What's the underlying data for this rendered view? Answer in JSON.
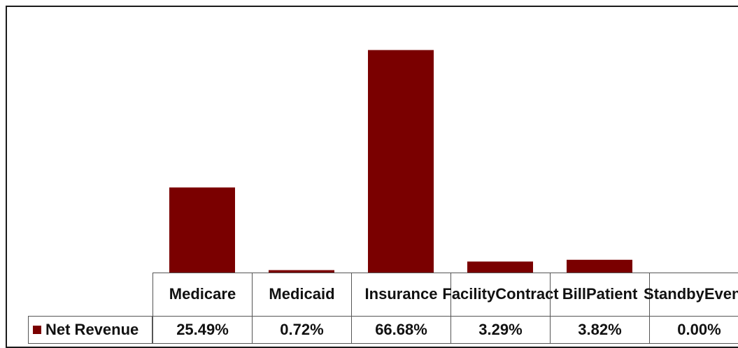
{
  "chart_data": {
    "type": "bar",
    "categories": [
      [
        "Medicare"
      ],
      [
        "Medicaid"
      ],
      [
        "Insurance"
      ],
      [
        "Facility",
        "Contract"
      ],
      [
        "Bill",
        "Patient"
      ],
      [
        "Standby",
        "Events"
      ]
    ],
    "series": [
      {
        "name": "Net Revenue",
        "values": [
          25.49,
          0.72,
          66.68,
          3.29,
          3.82,
          0.0
        ],
        "labels": [
          "25.49%",
          "0.72%",
          "66.68%",
          "3.29%",
          "3.82%",
          "0.00%"
        ],
        "color": "#7a0000"
      }
    ],
    "ylim": [
      0,
      80
    ],
    "grid": false,
    "legend": "data-table-left",
    "title": "",
    "xlabel": "",
    "ylabel": ""
  }
}
